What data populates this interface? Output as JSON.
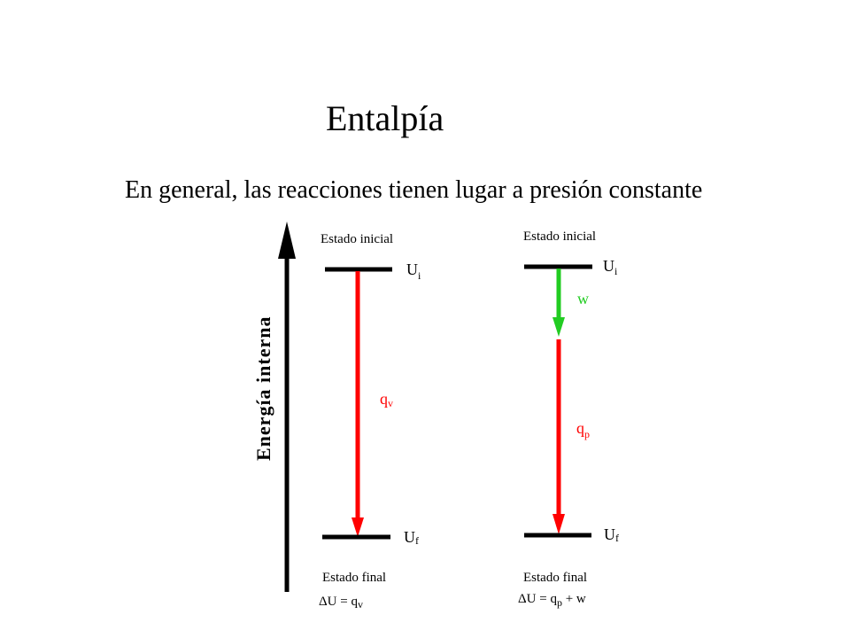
{
  "title": "Entalpía",
  "subtitle": "En general, las reacciones tienen lugar a presión constante",
  "axis_label": "Energía interna",
  "left_diagram": {
    "initial_state": "Estado inicial",
    "final_state": "Estado final",
    "initial_level": {
      "symbol": "U",
      "sub": "i"
    },
    "final_level": {
      "symbol": "U",
      "sub": "f"
    },
    "heat": {
      "symbol": "q",
      "sub": "v"
    },
    "equation": {
      "lhs": "ΔU = q",
      "sub": "v",
      "rest": ""
    }
  },
  "right_diagram": {
    "initial_state": "Estado inicial",
    "final_state": "Estado final",
    "initial_level": {
      "symbol": "U",
      "sub": "i"
    },
    "final_level": {
      "symbol": "U",
      "sub": "f"
    },
    "work": "w",
    "heat": {
      "symbol": "q",
      "sub": "p"
    },
    "equation": {
      "lhs": "ΔU = q",
      "sub": "p",
      "rest": " + w"
    }
  },
  "colors": {
    "heat": "#ff0000",
    "work": "#22cc22",
    "line": "#000000"
  }
}
